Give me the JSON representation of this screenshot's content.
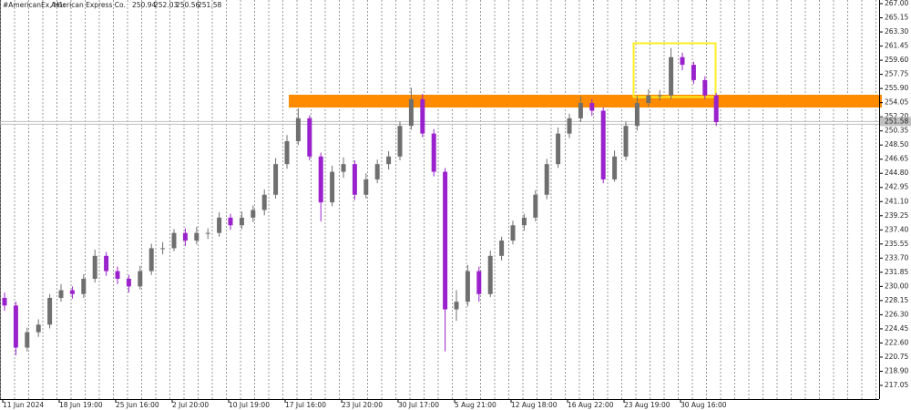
{
  "chart_data": {
    "type": "candlestick",
    "symbol": "#AmericanEx, H1:",
    "name": "American Express Co.",
    "header_values": [
      250.94,
      252.03,
      250.56,
      251.58
    ],
    "current_price": 251.58,
    "up_color": "#6f6f6f",
    "down_color": "#9a22cc",
    "ylim": [
      215.26,
      267.48
    ],
    "yticks": [
      {
        "value": 267,
        "label": "267.00"
      },
      265.15,
      {
        "value": 263.3,
        "label": "263.30"
      },
      261.45,
      {
        "value": 259.6,
        "label": "259.60"
      },
      257.75,
      {
        "value": 255.9,
        "label": "255.90"
      },
      254.05,
      {
        "value": 252.2,
        "label": "252.20"
      },
      250.35,
      {
        "value": 248.5,
        "label": "248.50"
      },
      246.65,
      {
        "value": 244.8,
        "label": "244.80"
      },
      242.95,
      {
        "value": 241.1,
        "label": "241.10"
      },
      239.25,
      {
        "value": 237.4,
        "label": "237.40"
      },
      235.55,
      {
        "value": 233.7,
        "label": "233.70"
      },
      231.85,
      {
        "value": 230,
        "label": "230.00"
      },
      228.15,
      {
        "value": 226.3,
        "label": "226.30"
      },
      224.45,
      {
        "value": 222.6,
        "label": "222.60"
      },
      220.75,
      {
        "value": 218.9,
        "label": "218.90"
      },
      217.05
    ],
    "categories": [
      "11 Jun 2024",
      null,
      null,
      null,
      null,
      "18 Jun 19:00",
      null,
      null,
      null,
      null,
      "25 Jun 16:00",
      null,
      null,
      null,
      null,
      "2 Jul 20:00",
      null,
      null,
      null,
      null,
      "10 Jul 19:00",
      null,
      null,
      null,
      null,
      "17 Jul 16:00",
      null,
      null,
      null,
      null,
      "23 Jul 20:00",
      null,
      null,
      null,
      null,
      "30 Jul 17:00",
      null,
      null,
      null,
      null,
      "5 Aug 21:00",
      null,
      null,
      null,
      null,
      "12 Aug 18:00",
      null,
      null,
      null,
      null,
      "16 Aug 22:00",
      null,
      null,
      null,
      null,
      "23 Aug 19:00",
      null,
      null,
      null,
      null,
      "30 Aug 16:00",
      null,
      null,
      null
    ],
    "open": [
      228.5,
      227.5,
      222,
      224,
      225,
      228.5,
      229.5,
      229,
      231,
      234,
      232,
      231,
      230,
      232,
      235,
      235,
      237,
      236,
      237,
      237,
      239,
      238,
      239,
      240,
      242,
      246,
      249,
      252,
      247,
      241,
      245,
      246,
      242,
      244,
      246,
      247,
      251,
      254.5,
      250,
      245,
      227,
      228,
      232,
      229,
      234,
      236,
      238,
      239,
      242,
      246,
      250,
      252,
      254,
      253,
      244,
      247,
      251,
      254,
      255,
      255,
      260,
      259,
      257,
      255
    ],
    "high": [
      229.2,
      228,
      224.6,
      225.7,
      229,
      230.3,
      230,
      231.6,
      234.8,
      234.5,
      232.6,
      231.5,
      232.7,
      235.6,
      235.8,
      237.5,
      237.6,
      237.8,
      237.6,
      239.7,
      239.5,
      239.8,
      240.6,
      242.7,
      246.8,
      249.8,
      253.3,
      252.4,
      247.5,
      245.8,
      246.9,
      246.5,
      244.8,
      246.6,
      247.7,
      251.6,
      256,
      255.2,
      250.6,
      245.5,
      229.5,
      232.8,
      232.6,
      234.7,
      236.5,
      238.6,
      239.5,
      242.6,
      246.7,
      250.8,
      252.6,
      254.9,
      254.5,
      253.4,
      247.8,
      251.6,
      254.9,
      255.8,
      255.7,
      261.2,
      260.6,
      259.4,
      257.5,
      255.3
    ],
    "low": [
      226.8,
      221,
      221.5,
      223.4,
      224.5,
      228,
      228.4,
      228.5,
      230.5,
      231.4,
      230.3,
      229.2,
      229.6,
      231.5,
      234.2,
      234.6,
      235.3,
      235.5,
      236.2,
      236.5,
      237.4,
      237.5,
      238.4,
      239.3,
      241.5,
      245.4,
      248.5,
      246.5,
      238.5,
      240.5,
      244.2,
      241.3,
      241.5,
      243.5,
      245.3,
      246.5,
      250.5,
      249.5,
      244.4,
      221.5,
      225.5,
      227.4,
      228,
      228.6,
      233.4,
      235.5,
      237.3,
      238.5,
      241.4,
      245.5,
      249.4,
      251.5,
      252.3,
      243.5,
      243.7,
      246.5,
      250.4,
      253.5,
      254.3,
      254.5,
      258.3,
      256.5,
      254.5,
      251
    ],
    "close": [
      227.5,
      222,
      224,
      225,
      228.5,
      229.5,
      229,
      231,
      234,
      232,
      231,
      230,
      232,
      235,
      235,
      237,
      236,
      237,
      237,
      239,
      238,
      239,
      240,
      242,
      246,
      249,
      252,
      247,
      241,
      245,
      246,
      242,
      244,
      246,
      247,
      251,
      254.5,
      250,
      245,
      227,
      228,
      232,
      229,
      234,
      236,
      238,
      239,
      242,
      246,
      250,
      252,
      254,
      253,
      244,
      247,
      251,
      254,
      255,
      255,
      260,
      259,
      257,
      255,
      251.5
    ]
  }
}
